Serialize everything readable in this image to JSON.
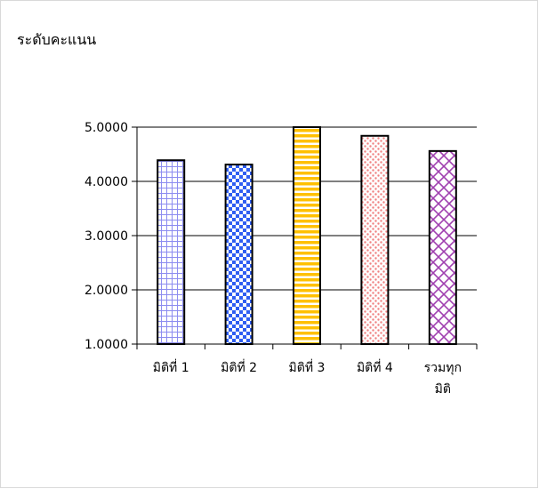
{
  "chart_data": {
    "type": "bar",
    "title": "",
    "ylabel": "ระดับคะแนน",
    "xlabel": "",
    "categories": [
      [
        "มิติที่ 1"
      ],
      [
        "มิติที่ 2"
      ],
      [
        "มิติที่ 3"
      ],
      [
        "มิติที่ 4"
      ],
      [
        "รวมทุก",
        "มิติ"
      ]
    ],
    "values": [
      4.39,
      4.31,
      5.0,
      4.84,
      4.56
    ],
    "ylim": [
      1.0,
      5.0
    ],
    "yticks": [
      1.0,
      2.0,
      3.0,
      4.0,
      5.0
    ],
    "ytick_labels": [
      "1.0000",
      "2.0000",
      "3.0000",
      "4.0000",
      "5.0000"
    ],
    "grid": true,
    "legend": false,
    "bar_styles": [
      {
        "pattern": "grid",
        "color": "#8c8cf0",
        "background": "#ffffff"
      },
      {
        "pattern": "checker",
        "color": "#2f5ef2",
        "background": "#ffffff"
      },
      {
        "pattern": "horizontal-stripes",
        "color": "#ffc000",
        "background": "#ffffff"
      },
      {
        "pattern": "dots",
        "color": "#f08080",
        "background": "#ffffff"
      },
      {
        "pattern": "diagonal-cross",
        "color": "#a040b0",
        "background": "#ffffff"
      }
    ]
  }
}
